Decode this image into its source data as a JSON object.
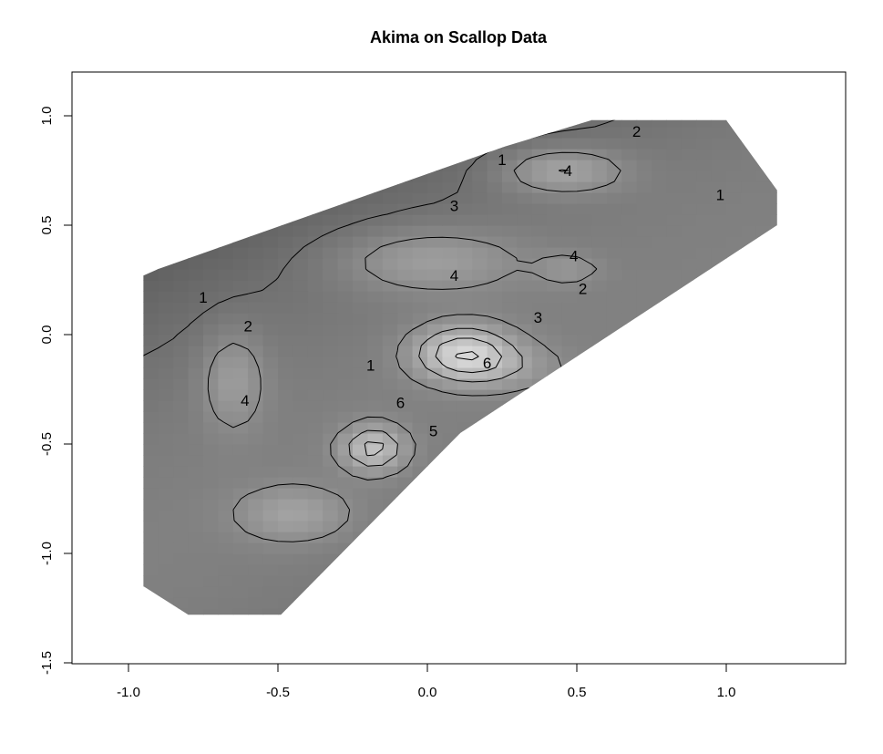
{
  "chart_data": {
    "type": "heatmap",
    "title": "Akima on Scallop Data",
    "xlabel": "",
    "ylabel": "",
    "xlim": [
      -1.2,
      1.4
    ],
    "ylim": [
      -1.5,
      1.2
    ],
    "x_ticks": [
      -1.0,
      -0.5,
      0.0,
      0.5,
      1.0
    ],
    "x_tick_labels": [
      "-1.0",
      "-0.5",
      "0.0",
      "0.5",
      "1.0"
    ],
    "y_ticks": [
      -1.5,
      -1.0,
      -0.5,
      0.0,
      0.5,
      1.0
    ],
    "y_tick_labels": [
      "-1.5",
      "-1.0",
      "-0.5",
      "0.0",
      "0.5",
      "1.0"
    ],
    "grid": false,
    "colormap": "grayscale",
    "contour_labels": [
      {
        "text": "1",
        "x": 0.25,
        "y": 0.8
      },
      {
        "text": "2",
        "x": 0.7,
        "y": 0.93
      },
      {
        "text": "4",
        "x": 0.47,
        "y": 0.75
      },
      {
        "text": "3",
        "x": 0.09,
        "y": 0.59
      },
      {
        "text": "4",
        "x": 0.49,
        "y": 0.36
      },
      {
        "text": "4",
        "x": 0.09,
        "y": 0.27
      },
      {
        "text": "1",
        "x": -0.75,
        "y": 0.17
      },
      {
        "text": "2",
        "x": -0.6,
        "y": 0.04
      },
      {
        "text": "2",
        "x": 0.52,
        "y": 0.21
      },
      {
        "text": "3",
        "x": 0.37,
        "y": 0.08
      },
      {
        "text": "1",
        "x": -0.19,
        "y": -0.14
      },
      {
        "text": "6",
        "x": 0.2,
        "y": -0.13
      },
      {
        "text": "4",
        "x": -0.61,
        "y": -0.3
      },
      {
        "text": "6",
        "x": -0.09,
        "y": -0.31
      },
      {
        "text": "5",
        "x": 0.02,
        "y": -0.44
      },
      {
        "text": "1",
        "x": 0.98,
        "y": 0.64
      }
    ]
  }
}
